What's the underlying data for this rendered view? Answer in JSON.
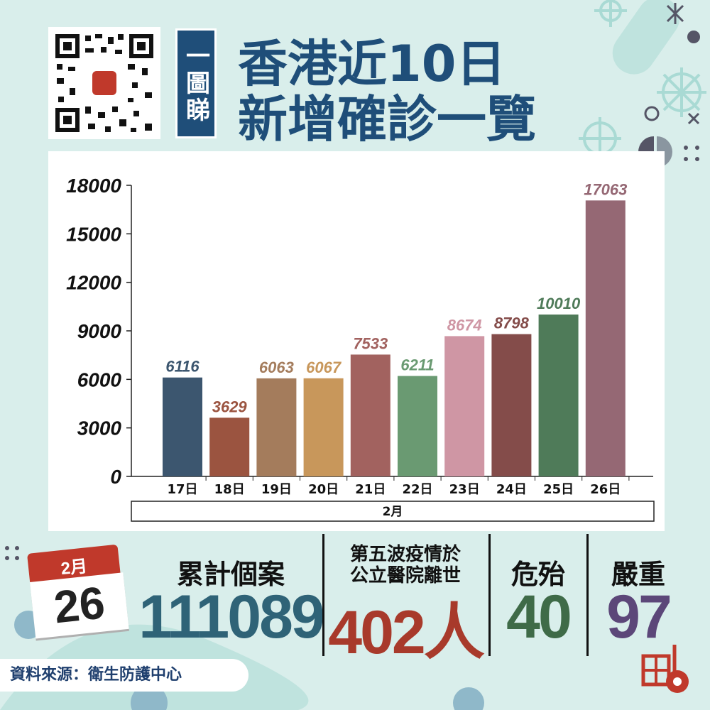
{
  "header": {
    "tag": "一圖睇",
    "title_line1": "香港近10日",
    "title_line2": "新增確診一覽"
  },
  "chart_data": {
    "type": "bar",
    "categories": [
      "17日",
      "18日",
      "19日",
      "20日",
      "21日",
      "22日",
      "23日",
      "24日",
      "25日",
      "26日"
    ],
    "values": [
      6116,
      3629,
      6063,
      6067,
      7533,
      6211,
      8674,
      8798,
      10010,
      17063
    ],
    "colors": [
      "#3c566f",
      "#9b5440",
      "#a47c5c",
      "#c8975b",
      "#a2625f",
      "#6a9a72",
      "#cf96a4",
      "#844c4a",
      "#4f7b59",
      "#956874"
    ],
    "y_ticks": [
      "0",
      "3000",
      "6000",
      "9000",
      "12000",
      "15000",
      "18000"
    ],
    "ylim": [
      0,
      18000
    ],
    "group_label": "2月",
    "grid": false
  },
  "calendar": {
    "month": "2月",
    "day": "26"
  },
  "stats": [
    {
      "label": "累計個案",
      "value": "111089",
      "color": "#2f6377"
    },
    {
      "label": "第五波疫情於\n公立醫院離世",
      "value": "402人",
      "color": "#a83a2b"
    },
    {
      "label": "危殆",
      "value": "40",
      "color": "#3f6b48"
    },
    {
      "label": "嚴重",
      "value": "97",
      "color": "#5c4779"
    }
  ],
  "source": "資料來源：衛生防護中心"
}
